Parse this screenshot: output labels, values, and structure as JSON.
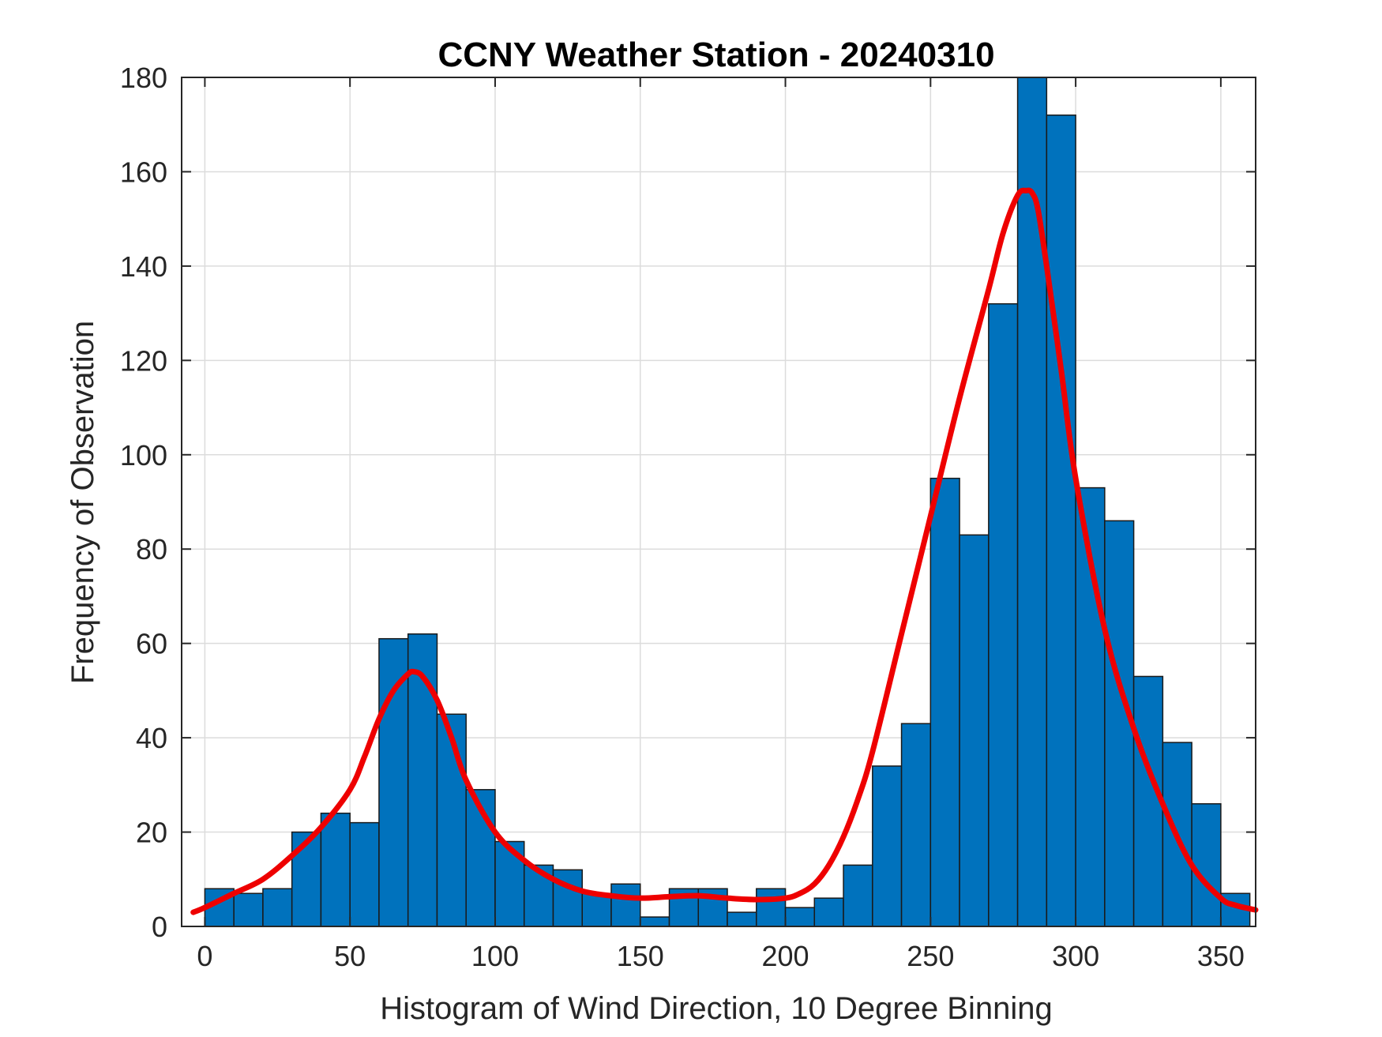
{
  "chart_data": {
    "type": "bar",
    "title": "CCNY Weather Station - 20240310",
    "xlabel": "Histogram of Wind Direction, 10 Degree Binning",
    "ylabel": "Frequency of Observation",
    "xlim": [
      -8,
      362
    ],
    "ylim": [
      0,
      180
    ],
    "xticks": [
      0,
      50,
      100,
      150,
      200,
      250,
      300,
      350
    ],
    "yticks": [
      0,
      20,
      40,
      60,
      80,
      100,
      120,
      140,
      160,
      180
    ],
    "grid": true,
    "bin_width": 10,
    "bin_edges_start": [
      0,
      10,
      20,
      30,
      40,
      50,
      60,
      70,
      80,
      90,
      100,
      110,
      120,
      130,
      140,
      150,
      160,
      170,
      180,
      190,
      200,
      210,
      220,
      230,
      240,
      250,
      260,
      270,
      280,
      290,
      300,
      310,
      320,
      330,
      340,
      350
    ],
    "values": [
      8,
      7,
      8,
      20,
      24,
      22,
      61,
      62,
      45,
      29,
      18,
      13,
      12,
      7,
      9,
      2,
      8,
      8,
      3,
      8,
      4,
      6,
      13,
      34,
      43,
      95,
      83,
      132,
      180,
      172,
      93,
      86,
      53,
      39,
      26,
      7
    ],
    "series": [
      {
        "kind": "line",
        "x": [
          -4,
          0,
          10,
          20,
          30,
          40,
          50,
          55,
          60,
          65,
          70,
          72,
          75,
          80,
          85,
          90,
          100,
          110,
          120,
          130,
          140,
          150,
          160,
          170,
          180,
          190,
          200,
          205,
          210,
          215,
          220,
          225,
          230,
          240,
          250,
          260,
          270,
          275,
          280,
          283,
          285,
          287,
          290,
          295,
          300,
          310,
          320,
          330,
          340,
          350,
          355,
          362
        ],
        "y": [
          3,
          4,
          7,
          10,
          15,
          21,
          29,
          36,
          44,
          50,
          53.5,
          54,
          53,
          48,
          40,
          31,
          20,
          14,
          10,
          7.5,
          6.5,
          6,
          6.3,
          6.5,
          6,
          5.7,
          6,
          7,
          9,
          13,
          19,
          27,
          37,
          62,
          87,
          112,
          135,
          147,
          155,
          156,
          155.5,
          152,
          140,
          118,
          95,
          63,
          42,
          26,
          13,
          6,
          4.5,
          3.5
        ],
        "color": "#ee0000"
      }
    ],
    "bar_color": "#0072bd"
  }
}
